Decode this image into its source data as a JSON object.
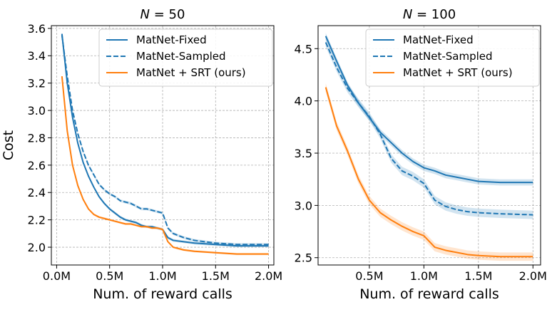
{
  "chart_data": [
    {
      "type": "line",
      "title": "N = 50",
      "title_parts": {
        "var": "N",
        "rest": " = 50"
      },
      "xlabel": "Num. of reward calls",
      "ylabel": "Cost",
      "xlim": [
        -0.05,
        2.05
      ],
      "ylim": [
        1.87,
        3.62
      ],
      "x_ticks": [
        0,
        0.5,
        1.0,
        1.5,
        2.0
      ],
      "x_tick_labels": [
        "0.0M",
        "0.5M",
        "1.0M",
        "1.5M",
        "2.0M"
      ],
      "y_ticks": [
        2.0,
        2.2,
        2.4,
        2.6,
        2.8,
        3.0,
        3.2,
        3.4,
        3.6
      ],
      "y_tick_labels": [
        "2.0",
        "2.2",
        "2.4",
        "2.6",
        "2.8",
        "3.0",
        "3.2",
        "3.4",
        "3.6"
      ],
      "grid": true,
      "legend_position": "top-right",
      "series": [
        {
          "name": "MatNet-Fixed",
          "color": "#1f77b4",
          "dash": "solid",
          "band": 0.01,
          "points": [
            [
              0.05,
              3.56
            ],
            [
              0.1,
              3.2
            ],
            [
              0.15,
              2.95
            ],
            [
              0.2,
              2.76
            ],
            [
              0.25,
              2.62
            ],
            [
              0.3,
              2.52
            ],
            [
              0.35,
              2.44
            ],
            [
              0.4,
              2.37
            ],
            [
              0.45,
              2.32
            ],
            [
              0.5,
              2.28
            ],
            [
              0.55,
              2.25
            ],
            [
              0.6,
              2.22
            ],
            [
              0.65,
              2.2
            ],
            [
              0.7,
              2.19
            ],
            [
              0.75,
              2.18
            ],
            [
              0.8,
              2.16
            ],
            [
              0.85,
              2.15
            ],
            [
              0.9,
              2.15
            ],
            [
              0.95,
              2.14
            ],
            [
              1.0,
              2.13
            ],
            [
              1.05,
              2.07
            ],
            [
              1.1,
              2.05
            ],
            [
              1.2,
              2.04
            ],
            [
              1.3,
              2.03
            ],
            [
              1.5,
              2.02
            ],
            [
              1.7,
              2.01
            ],
            [
              2.0,
              2.01
            ]
          ]
        },
        {
          "name": "MatNet-Sampled",
          "color": "#1f77b4",
          "dash": "dashed",
          "band": 0.01,
          "points": [
            [
              0.05,
              3.55
            ],
            [
              0.1,
              3.25
            ],
            [
              0.15,
              3.0
            ],
            [
              0.2,
              2.83
            ],
            [
              0.25,
              2.7
            ],
            [
              0.3,
              2.6
            ],
            [
              0.35,
              2.53
            ],
            [
              0.4,
              2.46
            ],
            [
              0.45,
              2.42
            ],
            [
              0.5,
              2.39
            ],
            [
              0.55,
              2.37
            ],
            [
              0.6,
              2.34
            ],
            [
              0.65,
              2.33
            ],
            [
              0.7,
              2.32
            ],
            [
              0.75,
              2.3
            ],
            [
              0.8,
              2.28
            ],
            [
              0.85,
              2.28
            ],
            [
              0.9,
              2.27
            ],
            [
              0.95,
              2.26
            ],
            [
              1.0,
              2.25
            ],
            [
              1.05,
              2.14
            ],
            [
              1.1,
              2.1
            ],
            [
              1.2,
              2.07
            ],
            [
              1.3,
              2.05
            ],
            [
              1.5,
              2.03
            ],
            [
              1.7,
              2.02
            ],
            [
              2.0,
              2.02
            ]
          ]
        },
        {
          "name": "MatNet + SRT (ours)",
          "color": "#ff7f0e",
          "dash": "solid",
          "band": 0.008,
          "points": [
            [
              0.05,
              3.25
            ],
            [
              0.1,
              2.85
            ],
            [
              0.15,
              2.6
            ],
            [
              0.2,
              2.45
            ],
            [
              0.25,
              2.35
            ],
            [
              0.3,
              2.28
            ],
            [
              0.35,
              2.24
            ],
            [
              0.4,
              2.22
            ],
            [
              0.45,
              2.21
            ],
            [
              0.5,
              2.2
            ],
            [
              0.55,
              2.19
            ],
            [
              0.6,
              2.18
            ],
            [
              0.65,
              2.17
            ],
            [
              0.7,
              2.17
            ],
            [
              0.75,
              2.16
            ],
            [
              0.8,
              2.15
            ],
            [
              0.85,
              2.15
            ],
            [
              0.9,
              2.14
            ],
            [
              0.95,
              2.14
            ],
            [
              1.0,
              2.13
            ],
            [
              1.05,
              2.04
            ],
            [
              1.1,
              2.0
            ],
            [
              1.2,
              1.98
            ],
            [
              1.3,
              1.97
            ],
            [
              1.5,
              1.96
            ],
            [
              1.7,
              1.95
            ],
            [
              2.0,
              1.95
            ]
          ]
        }
      ]
    },
    {
      "type": "line",
      "title": "N = 100",
      "title_parts": {
        "var": "N",
        "rest": " = 100"
      },
      "xlabel": "Num. of reward calls",
      "ylabel": "",
      "xlim": [
        0.03,
        2.07
      ],
      "ylim": [
        2.43,
        4.72
      ],
      "x_ticks": [
        0.5,
        1.0,
        1.5,
        2.0
      ],
      "x_tick_labels": [
        "0.5M",
        "1.0M",
        "1.5M",
        "2.0M"
      ],
      "y_ticks": [
        2.5,
        3.0,
        3.5,
        4.0,
        4.5
      ],
      "y_tick_labels": [
        "2.5",
        "3.0",
        "3.5",
        "4.0",
        "4.5"
      ],
      "grid": true,
      "legend_position": "top-right",
      "series": [
        {
          "name": "MatNet-Fixed",
          "color": "#1f77b4",
          "dash": "solid",
          "band": 0.03,
          "points": [
            [
              0.1,
              4.62
            ],
            [
              0.2,
              4.38
            ],
            [
              0.3,
              4.15
            ],
            [
              0.4,
              3.98
            ],
            [
              0.5,
              3.84
            ],
            [
              0.6,
              3.7
            ],
            [
              0.7,
              3.6
            ],
            [
              0.8,
              3.5
            ],
            [
              0.9,
              3.42
            ],
            [
              1.0,
              3.36
            ],
            [
              1.1,
              3.33
            ],
            [
              1.2,
              3.29
            ],
            [
              1.3,
              3.27
            ],
            [
              1.4,
              3.25
            ],
            [
              1.5,
              3.23
            ],
            [
              1.7,
              3.22
            ],
            [
              2.0,
              3.22
            ]
          ]
        },
        {
          "name": "MatNet-Sampled",
          "color": "#1f77b4",
          "dash": "dashed",
          "band": 0.04,
          "points": [
            [
              0.1,
              4.56
            ],
            [
              0.2,
              4.32
            ],
            [
              0.3,
              4.12
            ],
            [
              0.4,
              3.98
            ],
            [
              0.5,
              3.85
            ],
            [
              0.6,
              3.68
            ],
            [
              0.7,
              3.45
            ],
            [
              0.8,
              3.33
            ],
            [
              0.9,
              3.28
            ],
            [
              1.0,
              3.21
            ],
            [
              1.1,
              3.05
            ],
            [
              1.2,
              2.99
            ],
            [
              1.3,
              2.96
            ],
            [
              1.4,
              2.94
            ],
            [
              1.5,
              2.93
            ],
            [
              1.7,
              2.92
            ],
            [
              2.0,
              2.91
            ]
          ]
        },
        {
          "name": "MatNet + SRT (ours)",
          "color": "#ff7f0e",
          "dash": "solid",
          "band": 0.04,
          "points": [
            [
              0.1,
              4.13
            ],
            [
              0.2,
              3.76
            ],
            [
              0.3,
              3.52
            ],
            [
              0.4,
              3.25
            ],
            [
              0.5,
              3.05
            ],
            [
              0.6,
              2.93
            ],
            [
              0.7,
              2.86
            ],
            [
              0.8,
              2.8
            ],
            [
              0.9,
              2.75
            ],
            [
              1.0,
              2.71
            ],
            [
              1.1,
              2.6
            ],
            [
              1.2,
              2.57
            ],
            [
              1.3,
              2.55
            ],
            [
              1.4,
              2.53
            ],
            [
              1.5,
              2.52
            ],
            [
              1.7,
              2.51
            ],
            [
              2.0,
              2.51
            ]
          ]
        }
      ]
    }
  ]
}
